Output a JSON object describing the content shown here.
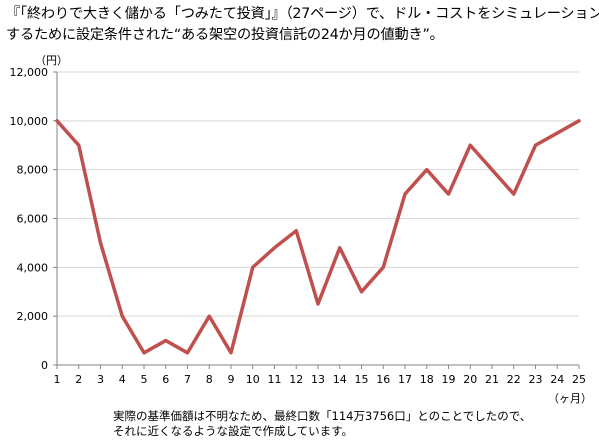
{
  "header": {
    "line1": "『「終わりで大きく儲かる「つみたて投資」』（27ページ）で、ドル・コストをシミュレーション",
    "line2": "するために設定条件された“ある架空の投資信託の24か月の値動き”。"
  },
  "chart_data": {
    "type": "line",
    "title": "",
    "xlabel": "（ヶ月）",
    "ylabel": "（円）",
    "x": [
      1,
      2,
      3,
      4,
      5,
      6,
      7,
      8,
      9,
      10,
      11,
      12,
      13,
      14,
      15,
      16,
      17,
      18,
      19,
      20,
      21,
      22,
      23,
      24,
      25
    ],
    "series": [
      {
        "values": [
          10000,
          9000,
          5000,
          2000,
          500,
          1000,
          500,
          2000,
          500,
          4000,
          4800,
          5500,
          2500,
          4800,
          3000,
          4000,
          7000,
          8000,
          7000,
          9000,
          8000,
          7000,
          9000,
          9500,
          10000
        ]
      }
    ],
    "ylim": [
      0,
      12000
    ],
    "xlim": [
      1,
      25
    ],
    "y_ticks": [
      "0",
      "2,000",
      "4,000",
      "6,000",
      "8,000",
      "10,000",
      "12,000"
    ],
    "x_ticks": [
      "1",
      "2",
      "3",
      "4",
      "5",
      "6",
      "7",
      "8",
      "9",
      "10",
      "11",
      "12",
      "13",
      "14",
      "15",
      "16",
      "17",
      "18",
      "19",
      "20",
      "21",
      "22",
      "23",
      "24",
      "25"
    ],
    "grid": "horizontal",
    "line_color": "#c0504d",
    "grid_color": "#d9d9d9",
    "axis_color": "#868686"
  },
  "footnote": {
    "line1": "実際の基準価額は不明なため、最終口数「114万3756口」とのことでしたので、",
    "line2": "それに近くなるような設定で作成しています。"
  }
}
